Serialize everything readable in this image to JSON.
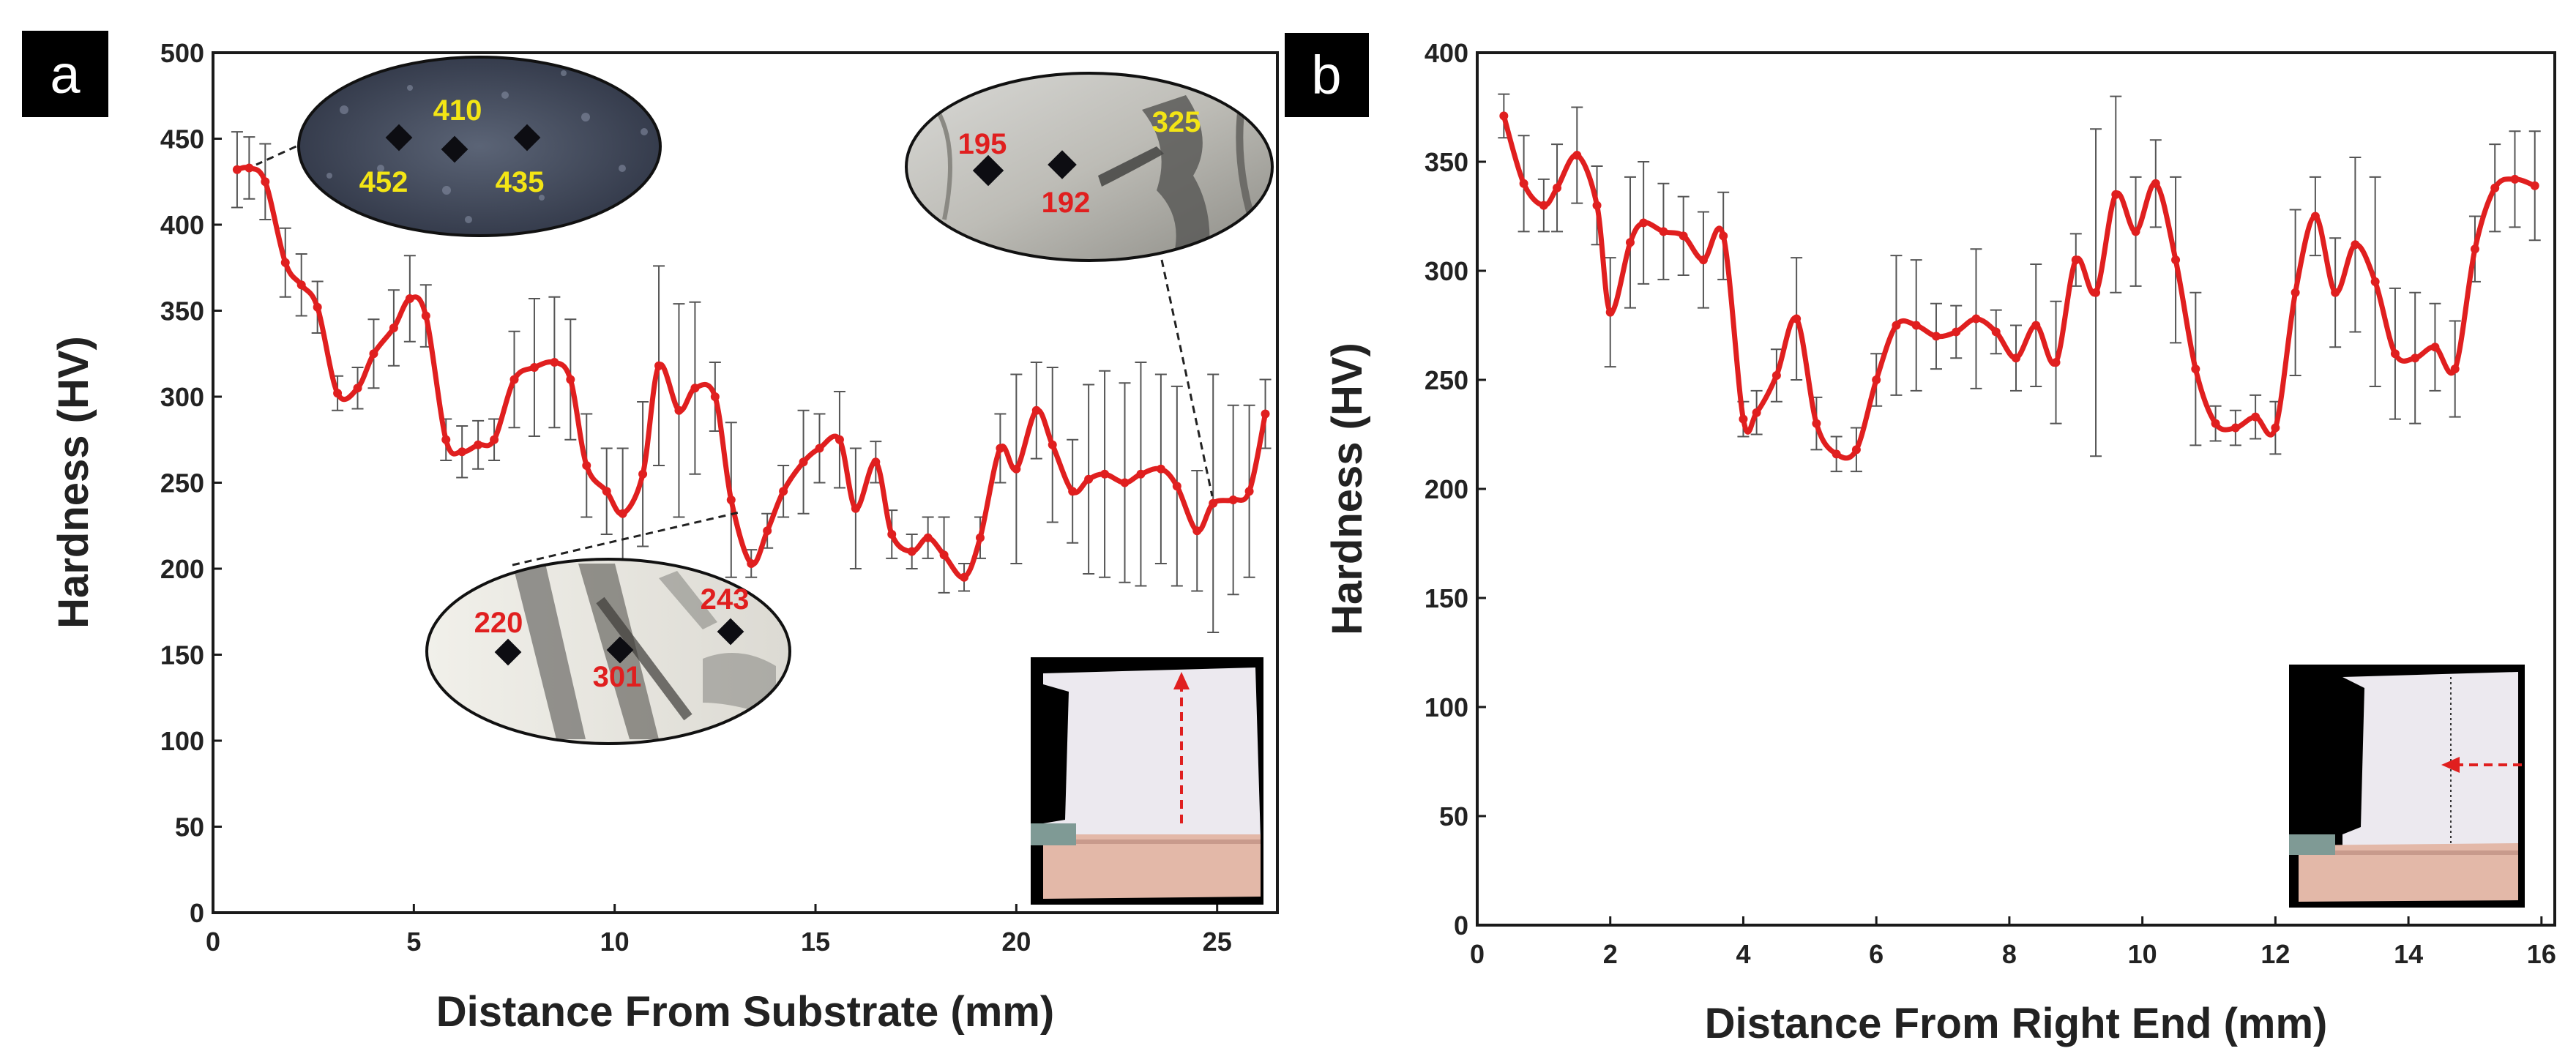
{
  "chart_data": [
    {
      "type": "line",
      "panel_label": "a",
      "xlabel": "Distance From Substrate (mm)",
      "ylabel": "Hardness (HV)",
      "xlim": [
        0,
        26.5
      ],
      "ylim": [
        0,
        500
      ],
      "xticks": [
        0,
        5,
        10,
        15,
        20,
        25
      ],
      "yticks": [
        0,
        50,
        100,
        150,
        200,
        250,
        300,
        350,
        400,
        450,
        500
      ],
      "series": [
        {
          "name": "Hardness",
          "color": "#e01f1f",
          "x": [
            0.6,
            0.9,
            1.3,
            1.8,
            2.2,
            2.6,
            3.1,
            3.6,
            4.0,
            4.5,
            4.9,
            5.3,
            5.8,
            6.2,
            6.6,
            7.0,
            7.5,
            8.0,
            8.5,
            8.9,
            9.3,
            9.8,
            10.2,
            10.7,
            11.1,
            11.6,
            12.0,
            12.5,
            12.9,
            13.4,
            13.8,
            14.2,
            14.7,
            15.1,
            15.6,
            16.0,
            16.5,
            16.9,
            17.4,
            17.8,
            18.2,
            18.7,
            19.1,
            19.6,
            20.0,
            20.5,
            20.9,
            21.4,
            21.8,
            22.2,
            22.7,
            23.1,
            23.6,
            24.0,
            24.5,
            24.9,
            25.4,
            25.8,
            26.2
          ],
          "y": [
            432,
            433,
            425,
            378,
            365,
            352,
            302,
            305,
            325,
            340,
            357,
            347,
            275,
            268,
            272,
            275,
            310,
            317,
            320,
            310,
            260,
            245,
            232,
            255,
            318,
            292,
            305,
            300,
            240,
            203,
            222,
            245,
            262,
            270,
            275,
            235,
            262,
            220,
            210,
            218,
            208,
            195,
            218,
            270,
            258,
            292,
            272,
            245,
            252,
            255,
            250,
            255,
            258,
            248,
            222,
            238,
            240,
            245,
            290
          ],
          "err": [
            22,
            18,
            22,
            20,
            18,
            15,
            10,
            12,
            20,
            22,
            25,
            18,
            12,
            15,
            14,
            12,
            28,
            40,
            38,
            35,
            30,
            25,
            38,
            42,
            58,
            62,
            50,
            20,
            45,
            8,
            10,
            15,
            30,
            20,
            28,
            35,
            12,
            14,
            10,
            12,
            22,
            8,
            12,
            20,
            55,
            28,
            45,
            30,
            55,
            60,
            58,
            65,
            55,
            58,
            35,
            75,
            55,
            50,
            20
          ]
        }
      ],
      "annotations": [
        {
          "label": "410",
          "color": "#f3e515"
        },
        {
          "label": "452",
          "color": "#f3e515"
        },
        {
          "label": "435",
          "color": "#f3e515"
        },
        {
          "label": "195",
          "color": "#e01f1f"
        },
        {
          "label": "192",
          "color": "#e01f1f"
        },
        {
          "label": "325",
          "color": "#f3e515"
        },
        {
          "label": "220",
          "color": "#e01f1f"
        },
        {
          "label": "301",
          "color": "#e01f1f"
        },
        {
          "label": "243",
          "color": "#e01f1f"
        }
      ]
    },
    {
      "type": "line",
      "panel_label": "b",
      "xlabel": "Distance From Right End (mm)",
      "ylabel": "Hardness (HV)",
      "xlim": [
        0,
        16.2
      ],
      "ylim": [
        0,
        400
      ],
      "xticks": [
        0,
        2,
        4,
        6,
        8,
        10,
        12,
        14,
        16
      ],
      "yticks": [
        0,
        50,
        100,
        150,
        200,
        250,
        300,
        350,
        400
      ],
      "series": [
        {
          "name": "Hardness",
          "color": "#e01f1f",
          "x": [
            0.4,
            0.7,
            1.0,
            1.2,
            1.5,
            1.8,
            2.0,
            2.3,
            2.5,
            2.8,
            3.1,
            3.4,
            3.7,
            4.0,
            4.2,
            4.5,
            4.8,
            5.1,
            5.4,
            5.7,
            6.0,
            6.3,
            6.6,
            6.9,
            7.2,
            7.5,
            7.8,
            8.1,
            8.4,
            8.7,
            9.0,
            9.3,
            9.6,
            9.9,
            10.2,
            10.5,
            10.8,
            11.1,
            11.4,
            11.7,
            12.0,
            12.3,
            12.6,
            12.9,
            13.2,
            13.5,
            13.8,
            14.1,
            14.4,
            14.7,
            15.0,
            15.3,
            15.6,
            15.9
          ],
          "y": [
            371,
            340,
            330,
            338,
            353,
            330,
            281,
            313,
            322,
            318,
            316,
            305,
            316,
            232,
            235,
            252,
            278,
            230,
            216,
            218,
            250,
            275,
            275,
            270,
            272,
            278,
            272,
            260,
            275,
            258,
            305,
            290,
            335,
            318,
            340,
            305,
            255,
            230,
            228,
            233,
            228,
            290,
            325,
            290,
            312,
            295,
            262,
            260,
            265,
            255,
            310,
            338,
            342,
            339
          ],
          "err": [
            10,
            22,
            12,
            20,
            22,
            18,
            25,
            30,
            28,
            22,
            18,
            22,
            20,
            8,
            10,
            12,
            28,
            12,
            8,
            10,
            12,
            32,
            30,
            15,
            12,
            32,
            10,
            15,
            28,
            28,
            12,
            75,
            45,
            25,
            20,
            38,
            35,
            8,
            8,
            10,
            12,
            38,
            18,
            25,
            40,
            48,
            30,
            30,
            20,
            22,
            15,
            20,
            22,
            25
          ]
        }
      ],
      "annotations": []
    }
  ]
}
